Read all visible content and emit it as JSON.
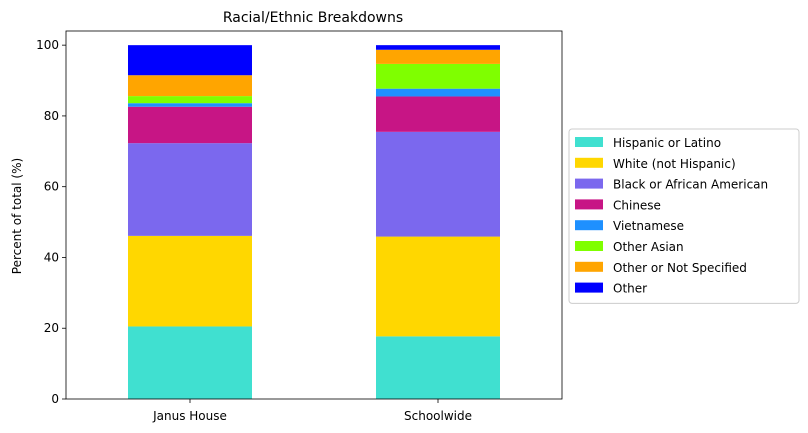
{
  "chart_data": {
    "type": "bar",
    "stacked": true,
    "title": "Racial/Ethnic Breakdowns",
    "xlabel": "",
    "ylabel": "Percent of total (%)",
    "ylim": [
      0,
      104
    ],
    "yticks": [
      0,
      20,
      40,
      60,
      80,
      100
    ],
    "categories": [
      "Janus House",
      "Schoolwide"
    ],
    "legend_position": "center-right, outside plot",
    "series": [
      {
        "name": "Hispanic or Latino",
        "color": "#40E0D0",
        "values": [
          20.5,
          17.7
        ]
      },
      {
        "name": "White (not Hispanic)",
        "color": "#FFD700",
        "values": [
          25.6,
          28.2
        ]
      },
      {
        "name": "Black or African American",
        "color": "#7B68EE",
        "values": [
          26.2,
          29.6
        ]
      },
      {
        "name": "Chinese",
        "color": "#C71585",
        "values": [
          10.3,
          10.0
        ]
      },
      {
        "name": "Vietnamese",
        "color": "#1E90FF",
        "values": [
          1.0,
          2.2
        ]
      },
      {
        "name": "Other Asian",
        "color": "#7FFF00",
        "values": [
          2.0,
          7.0
        ]
      },
      {
        "name": "Other or Not Specified",
        "color": "#FFA500",
        "values": [
          5.9,
          4.0
        ]
      },
      {
        "name": "Other",
        "color": "#0000FF",
        "values": [
          8.5,
          1.3
        ]
      }
    ]
  }
}
